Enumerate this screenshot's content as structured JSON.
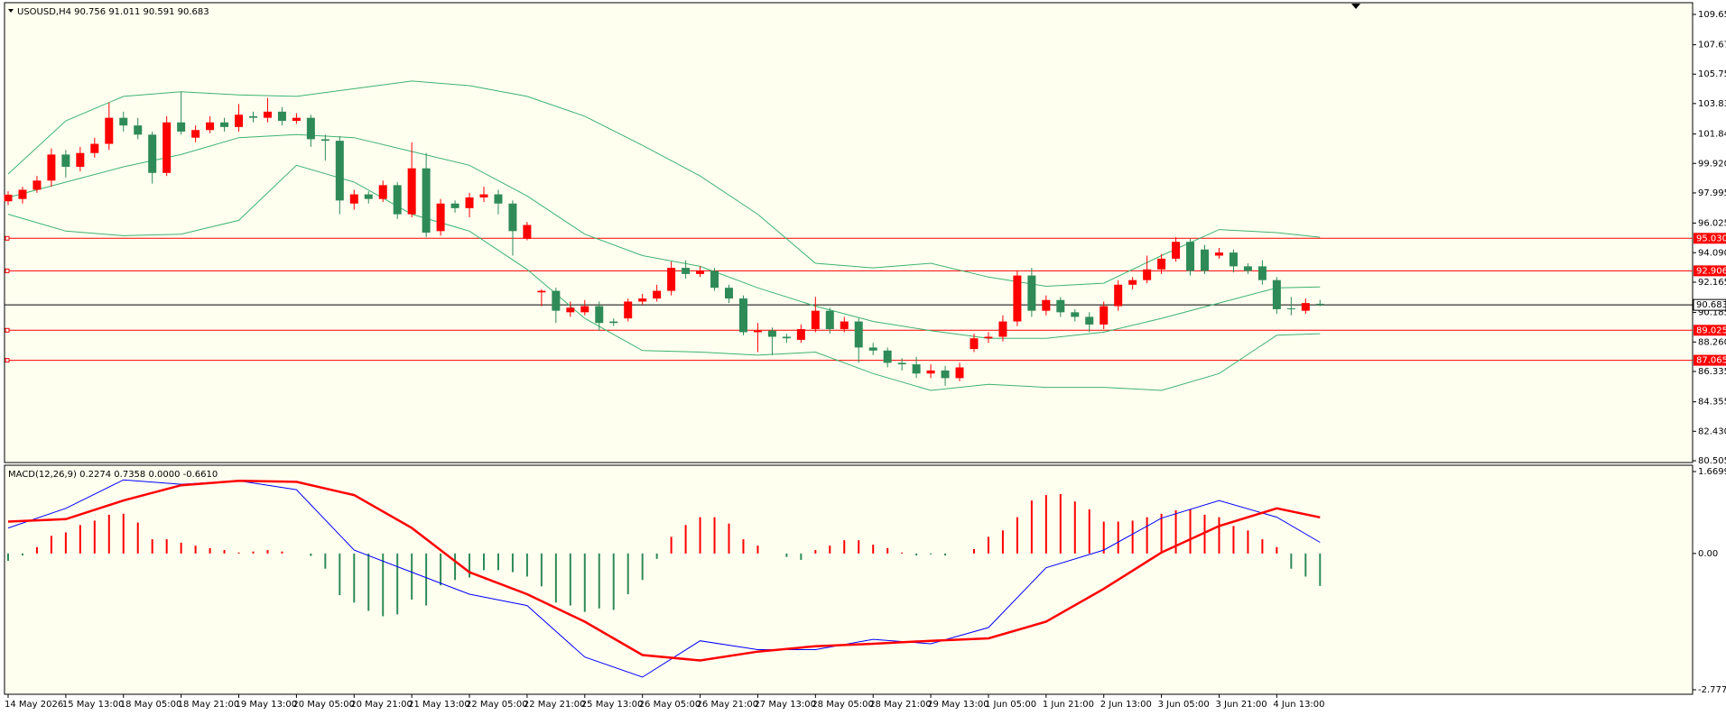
{
  "chart_data": {
    "type": "candlestick",
    "header": "USOUSD,H4  90.756 91.011 90.591 90.683",
    "indicator_header": "MACD(12,26,9) 0.2274 0.7358 0.0000 -0.6610",
    "up_color": "#ff0000",
    "down_color": "#2e8b57",
    "background": "#fffff0",
    "categories": [
      "14 May 2026",
      null,
      null,
      null,
      "15 May 13:00",
      null,
      null,
      null,
      "18 May 05:00",
      null,
      null,
      null,
      "18 May 21:00",
      null,
      null,
      null,
      "19 May 13:00",
      null,
      null,
      null,
      "20 May 05:00",
      null,
      null,
      null,
      "20 May 21:00",
      null,
      null,
      null,
      "21 May 13:00",
      null,
      null,
      null,
      "22 May 05:00",
      null,
      null,
      null,
      "22 May 21:00",
      null,
      null,
      null,
      "25 May 13:00",
      null,
      null,
      null,
      "26 May 05:00",
      null,
      null,
      null,
      "26 May 21:00",
      null,
      null,
      null,
      "27 May 13:00",
      null,
      null,
      null,
      "28 May 05:00",
      null,
      null,
      null,
      "28 May 21:00",
      null,
      null,
      null,
      "29 May 13:00",
      null,
      null,
      null,
      "1 Jun 05:00",
      null,
      null,
      null,
      "1 Jun 21:00",
      null,
      null,
      null,
      "2 Jun 13:00",
      null,
      null,
      null,
      "3 Jun 05:00",
      null,
      null,
      null,
      "3 Jun 21:00",
      null,
      null,
      null,
      "4 Jun 13:00",
      null,
      null,
      null
    ],
    "open": [
      97.45,
      97.6,
      98.2,
      98.8,
      100.5,
      99.7,
      100.6,
      101.2,
      102.9,
      102.4,
      101.8,
      99.3,
      102.6,
      101.6,
      102.1,
      102.6,
      102.3,
      103.0,
      102.9,
      103.3,
      102.7,
      102.9,
      101.5,
      101.4,
      97.3,
      97.9,
      97.6,
      98.5,
      96.6,
      99.6,
      95.5,
      97.3,
      97.0,
      97.7,
      97.9,
      97.3,
      95.0,
      91.5,
      91.6,
      90.2,
      90.2,
      90.6,
      89.6,
      89.8,
      90.9,
      91.1,
      91.6,
      93.1,
      92.7,
      92.9,
      91.8,
      91.1,
      88.9,
      89.0,
      88.6,
      88.4,
      89.1,
      90.3,
      89.1,
      89.6,
      87.9,
      87.7,
      86.9,
      86.8,
      86.2,
      86.4,
      85.9,
      87.8,
      88.5,
      88.6,
      89.6,
      92.6,
      90.3,
      91.0,
      90.2,
      89.9,
      89.4,
      90.6,
      92.0,
      92.3,
      93.0,
      93.7,
      94.8,
      94.3,
      93.9,
      94.1,
      93.2,
      93.2,
      92.3,
      90.45,
      90.3,
      90.756
    ],
    "high": [
      98.1,
      98.4,
      99.1,
      100.9,
      100.8,
      101.0,
      101.6,
      103.9,
      103.3,
      102.9,
      102.0,
      103.0,
      104.6,
      102.4,
      103.0,
      102.9,
      103.8,
      103.3,
      104.2,
      103.6,
      103.2,
      103.1,
      101.8,
      101.7,
      98.2,
      98.1,
      98.8,
      98.7,
      101.3,
      100.6,
      97.6,
      97.5,
      98.0,
      98.4,
      98.2,
      97.5,
      96.1,
      91.7,
      91.8,
      90.9,
      91.0,
      90.9,
      89.8,
      91.1,
      91.4,
      92.0,
      93.5,
      93.6,
      93.2,
      93.1,
      92.0,
      91.3,
      89.5,
      89.2,
      88.8,
      89.4,
      91.2,
      90.5,
      89.9,
      89.8,
      88.2,
      87.9,
      87.2,
      87.3,
      86.8,
      86.7,
      86.9,
      88.8,
      88.9,
      90.0,
      92.9,
      93.1,
      91.3,
      91.2,
      90.4,
      90.2,
      90.9,
      92.3,
      92.5,
      93.9,
      94.0,
      95.1,
      95.0,
      94.6,
      94.4,
      94.3,
      93.4,
      93.6,
      92.5,
      91.2,
      91.1,
      91.011
    ],
    "low": [
      97.2,
      97.3,
      98.0,
      98.4,
      99.0,
      99.4,
      100.3,
      100.8,
      102.0,
      101.5,
      98.6,
      99.1,
      101.8,
      101.3,
      101.9,
      102.0,
      102.0,
      102.6,
      102.6,
      102.4,
      102.5,
      101.0,
      100.1,
      96.6,
      96.9,
      97.3,
      97.4,
      96.3,
      96.4,
      95.1,
      95.2,
      96.7,
      96.4,
      97.4,
      96.6,
      93.9,
      94.9,
      90.6,
      89.5,
      89.9,
      90.0,
      89.0,
      89.3,
      89.6,
      90.7,
      90.9,
      91.3,
      92.4,
      92.5,
      91.6,
      90.8,
      88.7,
      87.6,
      87.4,
      88.2,
      88.2,
      88.9,
      88.8,
      88.9,
      86.9,
      87.4,
      86.6,
      86.4,
      85.9,
      85.9,
      85.4,
      85.7,
      87.6,
      88.2,
      88.3,
      89.3,
      89.9,
      90.0,
      89.9,
      89.6,
      88.9,
      89.1,
      90.3,
      91.7,
      92.1,
      92.7,
      93.5,
      92.6,
      92.7,
      93.7,
      92.8,
      92.7,
      92.0,
      90.1,
      90.0,
      90.1,
      90.591
    ],
    "close": [
      97.88,
      98.2,
      98.8,
      100.5,
      99.7,
      100.6,
      101.2,
      102.9,
      102.4,
      101.8,
      99.3,
      102.6,
      102.0,
      102.1,
      102.6,
      102.3,
      103.1,
      102.9,
      103.3,
      102.7,
      102.9,
      101.5,
      101.4,
      97.5,
      97.9,
      97.6,
      98.5,
      96.6,
      99.6,
      95.4,
      97.3,
      97.0,
      97.7,
      97.9,
      97.3,
      95.5,
      95.9,
      91.6,
      90.3,
      90.5,
      90.6,
      89.5,
      89.5,
      90.9,
      91.1,
      91.6,
      93.1,
      92.7,
      92.9,
      91.8,
      91.1,
      88.9,
      89.0,
      88.6,
      88.5,
      89.1,
      90.3,
      89.1,
      89.6,
      87.9,
      87.7,
      86.9,
      86.8,
      86.2,
      86.4,
      85.9,
      86.6,
      88.5,
      88.6,
      89.6,
      92.6,
      90.3,
      91.0,
      90.2,
      89.9,
      89.4,
      90.6,
      92.0,
      92.3,
      93.0,
      93.7,
      94.8,
      92.9,
      92.9,
      94.1,
      93.2,
      92.9,
      92.3,
      90.4,
      90.4,
      90.8,
      90.683
    ],
    "bands": [
      {
        "color": "#3cb371",
        "x": [
          0,
          4,
          8,
          12,
          16,
          20,
          24,
          28,
          32,
          36,
          40,
          44,
          48,
          52,
          56,
          60,
          64,
          68,
          72,
          76,
          80,
          84,
          88,
          91
        ],
        "values": [
          99.23,
          102.7,
          104.3,
          104.6,
          104.4,
          104.3,
          104.8,
          105.3,
          105.0,
          104.3,
          103.0,
          101.1,
          99.1,
          96.6,
          93.4,
          93.1,
          93.4,
          92.5,
          91.9,
          92.1,
          93.9,
          95.6,
          95.4,
          95.1
        ]
      },
      {
        "color": "#3cb371",
        "x": [
          0,
          4,
          8,
          12,
          16,
          20,
          24,
          28,
          32,
          36,
          40,
          44,
          48,
          52,
          56,
          60,
          64,
          68,
          72,
          76,
          80,
          84,
          88,
          91
        ],
        "values": [
          97.7,
          98.7,
          99.7,
          100.5,
          101.6,
          101.8,
          101.6,
          100.7,
          99.8,
          97.8,
          95.3,
          93.9,
          93.2,
          91.8,
          90.6,
          89.6,
          89.0,
          88.5,
          88.5,
          88.9,
          89.8,
          90.8,
          91.8,
          91.85
        ]
      },
      {
        "color": "#3cb371",
        "x": [
          0,
          4,
          8,
          12,
          16,
          20,
          24,
          28,
          32,
          36,
          40,
          44,
          48,
          52,
          56,
          60,
          64,
          68,
          72,
          76,
          80,
          84,
          88,
          91
        ],
        "values": [
          96.6,
          95.5,
          95.2,
          95.3,
          96.2,
          99.8,
          98.7,
          96.6,
          95.5,
          93.0,
          89.8,
          87.7,
          87.6,
          87.4,
          87.6,
          86.2,
          85.1,
          85.5,
          85.3,
          85.3,
          85.1,
          86.2,
          88.7,
          88.8
        ]
      }
    ],
    "levels": [
      {
        "value": 95.03,
        "label": "95.030"
      },
      92.906,
      89.025,
      87.065
    ],
    "level_color": "#ff0000",
    "last_price": 90.683,
    "ylim": [
      80.505,
      109.65
    ],
    "yticks": [
      109.65,
      107.67,
      105.75,
      103.83,
      101.84,
      {
        "value": 99.92,
        "label": "99.920"
      },
      97.995,
      96.025,
      {
        "value": 94.09,
        "label": "94.090"
      },
      92.165,
      90.185,
      {
        "value": 88.26,
        "label": "88.260"
      },
      86.335,
      84.355,
      {
        "value": 82.43,
        "label": "82.430"
      },
      80.505
    ],
    "macd": {
      "histogram": [
        -0.15,
        -0.04,
        0.13,
        0.36,
        0.43,
        0.58,
        0.67,
        0.79,
        0.81,
        0.63,
        0.29,
        0.29,
        0.22,
        0.16,
        0.11,
        0.07,
        0.02,
        0.04,
        0.07,
        0.04,
        0,
        -0.05,
        -0.31,
        -0.85,
        -1.0,
        -1.17,
        -1.28,
        -1.24,
        -0.94,
        -1.06,
        -0.65,
        -0.54,
        -0.49,
        -0.34,
        -0.34,
        -0.38,
        -0.47,
        -0.67,
        -1.0,
        -1.06,
        -1.19,
        -1.12,
        -1.15,
        -0.83,
        -0.54,
        -0.11,
        0.34,
        0.58,
        0.74,
        0.74,
        0.61,
        0.29,
        0.16,
        0,
        -0.07,
        -0.13,
        0.07,
        0.16,
        0.27,
        0.27,
        0.18,
        0.11,
        0.02,
        -0.04,
        -0.02,
        -0.04,
        0,
        0.09,
        0.34,
        0.47,
        0.74,
        1.08,
        1.19,
        1.21,
        1.06,
        0.9,
        0.65,
        0.65,
        0.67,
        0.74,
        0.81,
        0.88,
        0.9,
        0.79,
        0.74,
        0.56,
        0.47,
        0.29,
        0.13,
        -0.31,
        -0.47,
        -0.661
      ],
      "lines": [
        {
          "color": "#0000ff",
          "width": 1,
          "x": [
            0,
            4,
            8,
            12,
            16,
            20,
            24,
            28,
            32,
            36,
            40,
            44,
            48,
            52,
            56,
            60,
            64,
            68,
            72,
            76,
            80,
            84,
            88,
            91
          ],
          "values": [
            0.52,
            0.92,
            1.5,
            1.41,
            1.48,
            1.3,
            0.07,
            -0.38,
            -0.83,
            -1.06,
            -2.11,
            -2.52,
            -1.78,
            -1.96,
            -1.96,
            -1.75,
            -1.84,
            -1.51,
            -0.29,
            0.07,
            0.72,
            1.08,
            0.74,
            0.2274
          ]
        },
        {
          "color": "#ff0000",
          "width": 2.5,
          "x": [
            0,
            4,
            8,
            12,
            16,
            20,
            24,
            28,
            32,
            36,
            40,
            44,
            48,
            52,
            56,
            60,
            64,
            68,
            72,
            76,
            80,
            84,
            88,
            91
          ],
          "values": [
            0.65,
            0.7,
            1.08,
            1.39,
            1.48,
            1.46,
            1.19,
            0.52,
            -0.38,
            -0.83,
            -1.39,
            -2.07,
            -2.18,
            -2.0,
            -1.89,
            -1.84,
            -1.78,
            -1.73,
            -1.39,
            -0.72,
            0.02,
            0.56,
            0.92,
            0.7358
          ]
        }
      ],
      "ylim": [
        -2.7772,
        1.6699
      ],
      "yticks": [
        1.6699,
        {
          "value": 0,
          "label": "0.00"
        },
        -2.7772
      ]
    }
  }
}
